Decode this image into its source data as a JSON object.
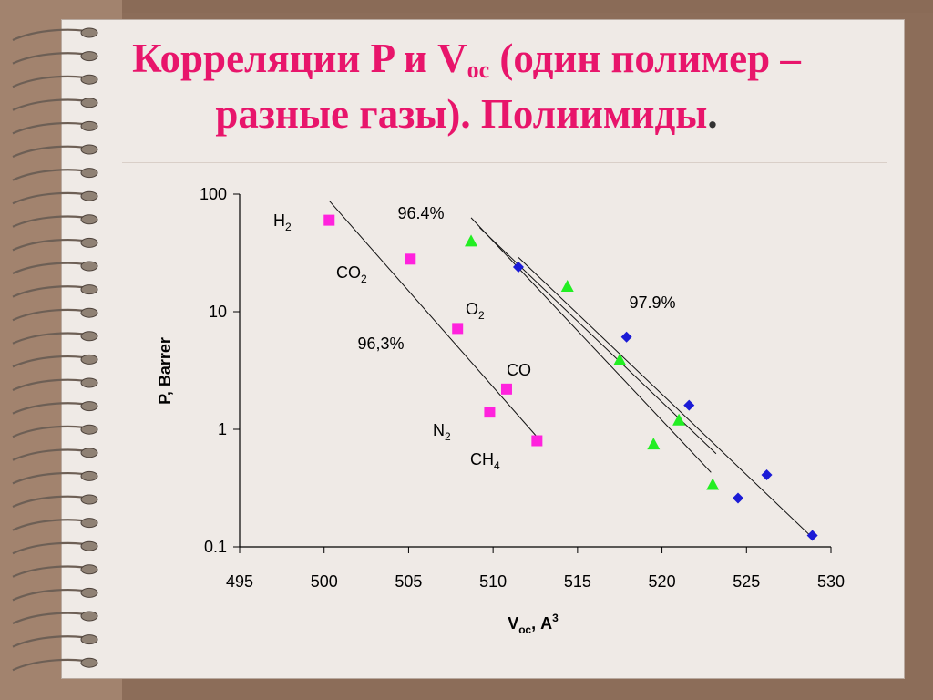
{
  "slide": {
    "title_line1_pre": "Корреляции P и V",
    "title_line1_sub": "ос",
    "title_line1_post": " (один полимер –",
    "title_line2": "разные газы). Полиимиды",
    "title_dot": "."
  },
  "colors": {
    "title": "#e8156b",
    "magenta_series": "#ff22dd",
    "green_series": "#22ee22",
    "blue_series": "#1b1bd6",
    "binding": "#7a6a5e"
  },
  "chart_data": {
    "type": "scatter",
    "xlabel_main": "V",
    "xlabel_sub": "ос",
    "xlabel_mid": ", A",
    "xlabel_sup": "3",
    "ylabel": "P, Barrer",
    "xlim": [
      495,
      530
    ],
    "ylim": [
      0.1,
      100
    ],
    "y_scale": "log",
    "x_ticks": [
      "495",
      "500",
      "505",
      "510",
      "515",
      "520",
      "525",
      "530"
    ],
    "y_ticks": [
      "0.1",
      "1",
      "10",
      "100"
    ],
    "series": [
      {
        "marker": "square",
        "color": "#ff22dd",
        "points": [
          [
            500.3,
            60
          ],
          [
            505.1,
            28
          ],
          [
            507.9,
            7.2
          ],
          [
            510.8,
            2.2
          ],
          [
            509.8,
            1.4
          ],
          [
            512.6,
            0.8
          ]
        ],
        "fit": [
          [
            500.3,
            88
          ],
          [
            512.8,
            0.8
          ]
        ],
        "fit_label": "96,3%"
      },
      {
        "marker": "triangle",
        "color": "#22ee22",
        "points": [
          [
            508.7,
            40
          ],
          [
            514.4,
            16.5
          ],
          [
            517.5,
            3.9
          ],
          [
            521.0,
            1.2
          ],
          [
            519.5,
            0.75
          ],
          [
            523.0,
            0.34
          ]
        ],
        "fit": [
          [
            508.7,
            63
          ],
          [
            522.9,
            0.43
          ]
        ],
        "fit_label": "96.4%"
      },
      {
        "marker": "diamond",
        "color": "#1b1bd6",
        "points": [
          [
            511.5,
            24
          ],
          [
            517.9,
            6.1
          ],
          [
            521.6,
            1.6
          ],
          [
            526.2,
            0.41
          ],
          [
            524.5,
            0.26
          ],
          [
            528.9,
            0.125
          ]
        ],
        "fit": [
          [
            511.5,
            29
          ],
          [
            528.9,
            0.12
          ]
        ],
        "fit_label": "97.9%"
      }
    ],
    "gas_labels": [
      {
        "main": "H",
        "sub": "2"
      },
      {
        "main": "CO",
        "sub": "2"
      },
      {
        "main": "O",
        "sub": "2"
      },
      {
        "main": "CO",
        "sub": ""
      },
      {
        "main": "N",
        "sub": "2"
      },
      {
        "main": "CH",
        "sub": "4"
      }
    ]
  }
}
